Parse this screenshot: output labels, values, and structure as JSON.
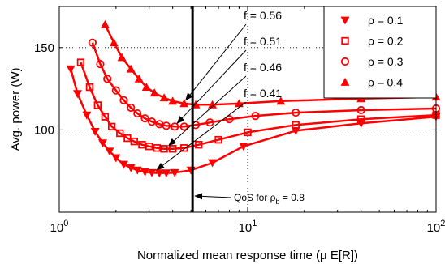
{
  "chart_data": {
    "type": "line",
    "xlabel": "Normalized mean response time (μ E[R])",
    "ylabel": "Avg. power (W)",
    "xscale": "log",
    "xlim": [
      1,
      100
    ],
    "ylim": [
      50,
      175
    ],
    "x_ticks": [
      {
        "value": 1,
        "base": "10",
        "exp": "0"
      },
      {
        "value": 10,
        "base": "10",
        "exp": "1"
      },
      {
        "value": 100,
        "base": "10",
        "exp": "2"
      }
    ],
    "y_ticks": [
      100,
      150
    ],
    "grid": "dotted",
    "legend_position": "top-right",
    "color": "#ff0000",
    "series": [
      {
        "name": "ρ = 0.1",
        "marker": "triangle-down",
        "x": [
          1.15,
          1.25,
          1.4,
          1.55,
          1.7,
          1.85,
          2.0,
          2.2,
          2.4,
          2.6,
          2.85,
          3.1,
          3.4,
          3.7,
          4.1,
          5.0,
          6.5,
          9.5,
          18,
          40,
          100
        ],
        "y": [
          137,
          122,
          109,
          99,
          92,
          87,
          83,
          79,
          77,
          75.5,
          74.5,
          74,
          73.8,
          73.8,
          74,
          75.5,
          80,
          90,
          99.5,
          104,
          108
        ]
      },
      {
        "name": "ρ = 0.2",
        "marker": "square",
        "x": [
          1.3,
          1.45,
          1.6,
          1.75,
          1.9,
          2.1,
          2.3,
          2.5,
          2.75,
          3.0,
          3.3,
          3.6,
          4.0,
          4.6,
          5.5,
          7.0,
          10,
          18,
          40,
          100
        ],
        "y": [
          141,
          126,
          115,
          108,
          102,
          98,
          95,
          93,
          91,
          90,
          89,
          88.5,
          88.5,
          89,
          91,
          94,
          98.5,
          103,
          106.5,
          109
        ]
      },
      {
        "name": "ρ = 0.3",
        "marker": "circle",
        "x": [
          1.5,
          1.65,
          1.8,
          2.0,
          2.2,
          2.4,
          2.6,
          2.85,
          3.1,
          3.4,
          3.7,
          4.1,
          4.6,
          5.3,
          6.3,
          8.0,
          11,
          18,
          40,
          100
        ],
        "y": [
          153,
          140,
          131,
          124,
          118,
          113.5,
          110,
          107,
          105,
          103.5,
          102.5,
          102,
          102,
          103,
          104.5,
          106.5,
          108.5,
          110.5,
          112,
          113
        ]
      },
      {
        "name": "ρ – 0.4",
        "marker": "triangle-up",
        "x": [
          1.75,
          1.95,
          2.15,
          2.4,
          2.65,
          2.9,
          3.2,
          3.6,
          4.0,
          4.6,
          5.3,
          6.5,
          9.0,
          15,
          40,
          100
        ],
        "y": [
          164,
          153,
          144,
          137,
          131,
          126,
          122.5,
          119.5,
          117.5,
          116,
          115.3,
          115.3,
          116,
          117.5,
          119,
          120
        ]
      }
    ],
    "vertical_line": {
      "x": 5.1
    },
    "annotations": [
      {
        "text": "f = 0.56",
        "target": [
          4.55,
          116
        ]
      },
      {
        "text": "f = 0.51",
        "target": [
          4.1,
          102
        ]
      },
      {
        "text": "f = 0.46",
        "target": [
          3.7,
          88.5
        ]
      },
      {
        "text": "f = 0.41",
        "target": [
          3.2,
          73.8
        ]
      }
    ],
    "qos_label": {
      "text": "QoS for ρ",
      "sub": "b",
      "suffix": " = 0.8",
      "target": [
        5.1,
        62
      ]
    }
  }
}
